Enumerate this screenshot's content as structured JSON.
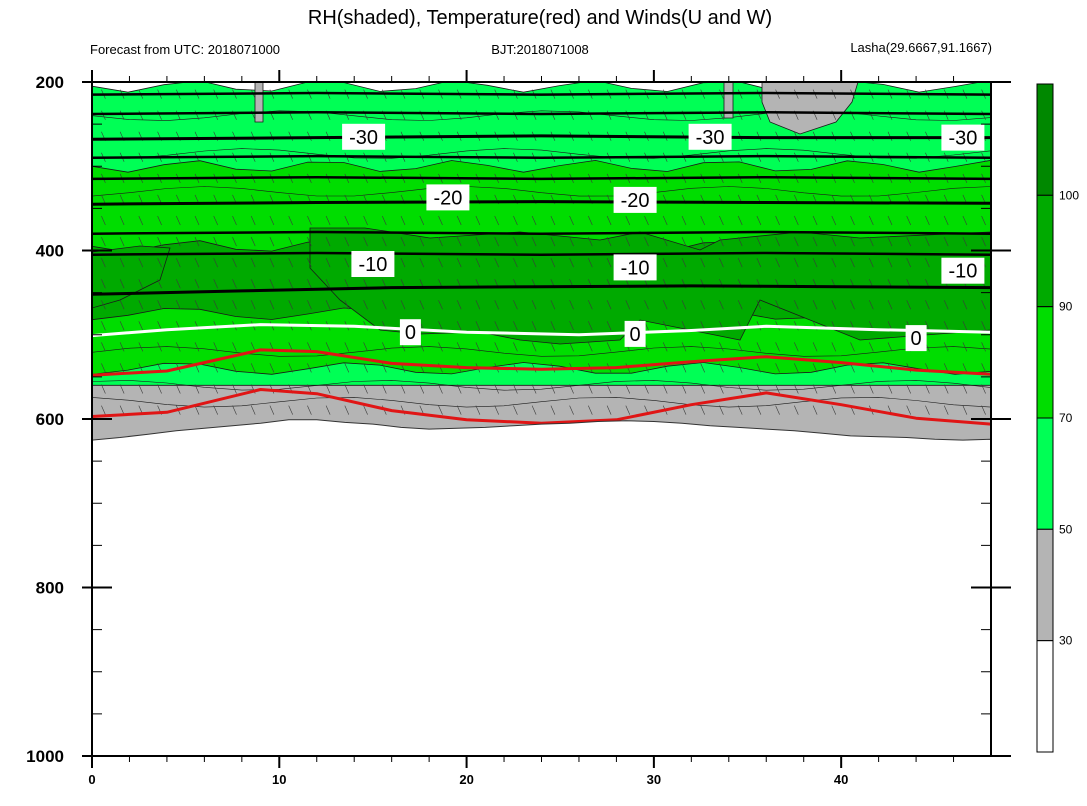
{
  "chart_data": {
    "type": "heatmap",
    "title": "RH(shaded), Temperature(red) and Winds(U and W)",
    "subtitle_left": "Forecast from UTC: 2018071000",
    "subtitle_center": "BJT:2018071008",
    "subtitle_right": "Lasha(29.6667,91.1667)",
    "xlim": [
      0,
      48
    ],
    "ylim": [
      1000,
      200
    ],
    "x_ticks": [
      "0",
      "10",
      "20",
      "30",
      "40"
    ],
    "y_ticks": [
      "200",
      "400",
      "600",
      "800",
      "1000"
    ],
    "colorbar": {
      "levels": [
        "30",
        "50",
        "70",
        "90",
        "100"
      ],
      "colors": [
        "#ffffff",
        "#b4b4b4",
        "#00ff55",
        "#00dd00",
        "#00aa00",
        "#008800"
      ]
    },
    "colors": {
      "temperature": "#e01515",
      "isotherm_zero": "#ffffff",
      "isotherm": "#000000"
    },
    "surface_pressure": [
      625,
      622,
      618,
      614,
      611,
      608,
      605,
      601,
      601,
      604,
      606,
      610,
      612,
      611,
      610,
      608,
      606,
      605,
      603,
      602,
      603,
      605,
      608,
      610,
      612,
      614,
      617,
      620,
      621,
      622,
      624,
      625,
      624
    ],
    "temperature_contours": [
      {
        "level": "neg30",
        "label": "-30",
        "x": [
          0,
          12,
          24,
          36,
          48
        ],
        "p": [
          268,
          266,
          264,
          266,
          266
        ]
      },
      {
        "level": "neg20",
        "label": "-20",
        "x": [
          0,
          12,
          24,
          36,
          48
        ],
        "p": [
          345,
          343,
          342,
          343,
          344
        ]
      },
      {
        "level": "neg10",
        "label": "-10",
        "x": [
          0,
          8,
          16,
          24,
          32,
          40,
          48
        ],
        "p": [
          452,
          448,
          444,
          443,
          442,
          443,
          444
        ]
      },
      {
        "level": "zero",
        "label": "0",
        "x": [
          0,
          4,
          9,
          14,
          20,
          26,
          32,
          36,
          42,
          48
        ],
        "p": [
          501,
          494,
          488,
          490,
          497,
          500,
          495,
          490,
          494,
          497
        ]
      },
      {
        "level": "warm1",
        "label": "",
        "x": [
          0,
          4,
          9,
          12,
          16,
          20,
          24,
          28,
          32,
          36,
          40,
          44,
          48
        ],
        "p": [
          548,
          543,
          518,
          520,
          534,
          539,
          541,
          539,
          532,
          526,
          533,
          542,
          547
        ]
      },
      {
        "level": "warm2",
        "label": "",
        "x": [
          0,
          4,
          9,
          12,
          16,
          20,
          24,
          28,
          32,
          36,
          40,
          44,
          48
        ],
        "p": [
          597,
          592,
          565,
          570,
          590,
          601,
          605,
          601,
          583,
          569,
          583,
          599,
          606
        ]
      }
    ],
    "contour_labels": [
      {
        "text": "-30",
        "x": 14.5,
        "p": 265
      },
      {
        "text": "-30",
        "x": 33,
        "p": 265
      },
      {
        "text": "-30",
        "x": 46.5,
        "p": 266
      },
      {
        "text": "-20",
        "x": 19,
        "p": 337
      },
      {
        "text": "-20",
        "x": 29,
        "p": 340
      },
      {
        "text": "-10",
        "x": 15,
        "p": 416
      },
      {
        "text": "-10",
        "x": 29,
        "p": 420
      },
      {
        "text": "-10",
        "x": 46.5,
        "p": 424
      },
      {
        "text": "0",
        "x": 17,
        "p": 497
      },
      {
        "text": "0",
        "x": 29,
        "p": 499
      },
      {
        "text": "0",
        "x": 44,
        "p": 504
      }
    ],
    "rh_bands": [
      {
        "range": "90-100",
        "p_top": 395,
        "p_bottom": 475
      },
      {
        "range": "70-90",
        "p_top": 300,
        "p_bottom": 540
      },
      {
        "range": "50-70",
        "p_top": 205,
        "p_bottom": 600
      },
      {
        "range": "30-50",
        "p_top": 560,
        "p_bottom": "surface"
      }
    ]
  }
}
